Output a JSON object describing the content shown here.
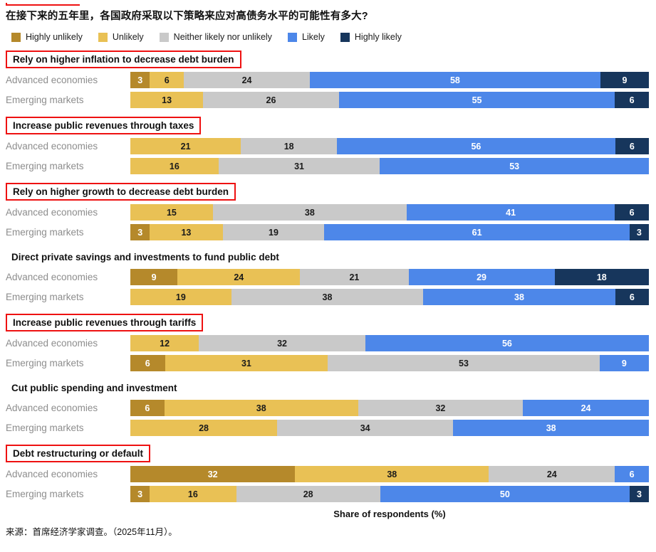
{
  "page": {
    "title": "在接下来的五年里，各国政府采取以下策略来应对高债务水平的可能性有多大?",
    "xlabel": "Share of respondents (%)",
    "source": "来源：首席经济学家调查。（2025年11月）。",
    "highlight_box_color": "#ee1111"
  },
  "legend": [
    {
      "label": "Highly unlikely",
      "color": "#b5892b"
    },
    {
      "label": "Unlikely",
      "color": "#e9c155"
    },
    {
      "label": "Neither likely nor unlikely",
      "color": "#c9c9c9"
    },
    {
      "label": "Likely",
      "color": "#4d87e9"
    },
    {
      "label": "Highly likely",
      "color": "#17365c"
    }
  ],
  "chart_data": {
    "type": "bar",
    "orientation": "horizontal",
    "stacked": true,
    "unit": "percent",
    "xlim": [
      0,
      100
    ],
    "series_names": [
      "Highly unlikely",
      "Unlikely",
      "Neither likely nor unlikely",
      "Likely",
      "Highly likely"
    ],
    "series_colors": [
      "#b5892b",
      "#e9c155",
      "#c9c9c9",
      "#4d87e9",
      "#17365c"
    ],
    "segment_text_colors": [
      "#ffffff",
      "#1a1a1a",
      "#1a1a1a",
      "#ffffff",
      "#ffffff"
    ],
    "row_labels": [
      "Advanced economies",
      "Emerging markets"
    ],
    "groups": [
      {
        "strategy": "Rely on higher inflation to decrease debt burden",
        "highlighted": true,
        "rows": [
          {
            "label": "Advanced economies",
            "values": [
              3,
              6,
              24,
              58,
              9
            ]
          },
          {
            "label": "Emerging markets",
            "values": [
              0,
              13,
              26,
              55,
              6
            ]
          }
        ]
      },
      {
        "strategy": "Increase public revenues through taxes",
        "highlighted": true,
        "rows": [
          {
            "label": "Advanced economies",
            "values": [
              0,
              21,
              18,
              56,
              6
            ]
          },
          {
            "label": "Emerging markets",
            "values": [
              0,
              16,
              31,
              53,
              0
            ]
          }
        ]
      },
      {
        "strategy": "Rely on higher growth to decrease debt burden",
        "highlighted": true,
        "rows": [
          {
            "label": "Advanced economies",
            "values": [
              0,
              15,
              38,
              41,
              6
            ]
          },
          {
            "label": "Emerging markets",
            "values": [
              3,
              13,
              19,
              61,
              3
            ]
          }
        ]
      },
      {
        "strategy": "Direct private savings and investments to fund public debt",
        "highlighted": false,
        "rows": [
          {
            "label": "Advanced economies",
            "values": [
              9,
              24,
              21,
              29,
              18
            ]
          },
          {
            "label": "Emerging markets",
            "values": [
              0,
              19,
              38,
              38,
              6
            ]
          }
        ]
      },
      {
        "strategy": "Increase public revenues through tariffs",
        "highlighted": true,
        "rows": [
          {
            "label": "Advanced economies",
            "values": [
              0,
              12,
              32,
              56,
              0
            ]
          },
          {
            "label": "Emerging markets",
            "values": [
              6,
              31,
              53,
              9,
              0
            ]
          }
        ]
      },
      {
        "strategy": "Cut public spending and investment",
        "highlighted": false,
        "rows": [
          {
            "label": "Advanced economies",
            "values": [
              6,
              38,
              32,
              24,
              0
            ]
          },
          {
            "label": "Emerging markets",
            "values": [
              0,
              28,
              34,
              38,
              0
            ]
          }
        ]
      },
      {
        "strategy": "Debt restructuring or default",
        "highlighted": true,
        "rows": [
          {
            "label": "Advanced economies",
            "values": [
              32,
              38,
              24,
              6,
              0
            ]
          },
          {
            "label": "Emerging markets",
            "values": [
              3,
              16,
              28,
              50,
              3
            ]
          }
        ]
      }
    ]
  }
}
